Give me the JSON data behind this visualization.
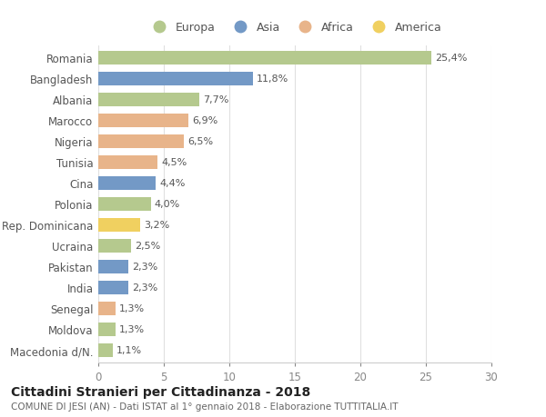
{
  "countries": [
    "Macedonia d/N.",
    "Moldova",
    "Senegal",
    "India",
    "Pakistan",
    "Ucraina",
    "Rep. Dominicana",
    "Polonia",
    "Cina",
    "Tunisia",
    "Nigeria",
    "Marocco",
    "Albania",
    "Bangladesh",
    "Romania"
  ],
  "values": [
    1.1,
    1.3,
    1.3,
    2.3,
    2.3,
    2.5,
    3.2,
    4.0,
    4.4,
    4.5,
    6.5,
    6.9,
    7.7,
    11.8,
    25.4
  ],
  "labels": [
    "1,1%",
    "1,3%",
    "1,3%",
    "2,3%",
    "2,3%",
    "2,5%",
    "3,2%",
    "4,0%",
    "4,4%",
    "4,5%",
    "6,5%",
    "6,9%",
    "7,7%",
    "11,8%",
    "25,4%"
  ],
  "continent": [
    "Europa",
    "Europa",
    "Africa",
    "Asia",
    "Asia",
    "Europa",
    "America",
    "Europa",
    "Asia",
    "Africa",
    "Africa",
    "Africa",
    "Europa",
    "Asia",
    "Europa"
  ],
  "colors": {
    "Europa": "#b5c98e",
    "Asia": "#7399c6",
    "Africa": "#e8b48a",
    "America": "#f0d060"
  },
  "legend_order": [
    "Europa",
    "Asia",
    "Africa",
    "America"
  ],
  "title": "Cittadini Stranieri per Cittadinanza - 2018",
  "subtitle": "COMUNE DI JESI (AN) - Dati ISTAT al 1° gennaio 2018 - Elaborazione TUTTITALIA.IT",
  "xlim": [
    0,
    30
  ],
  "xticks": [
    0,
    5,
    10,
    15,
    20,
    25,
    30
  ],
  "background_color": "#ffffff",
  "grid_color": "#e0e0e0"
}
